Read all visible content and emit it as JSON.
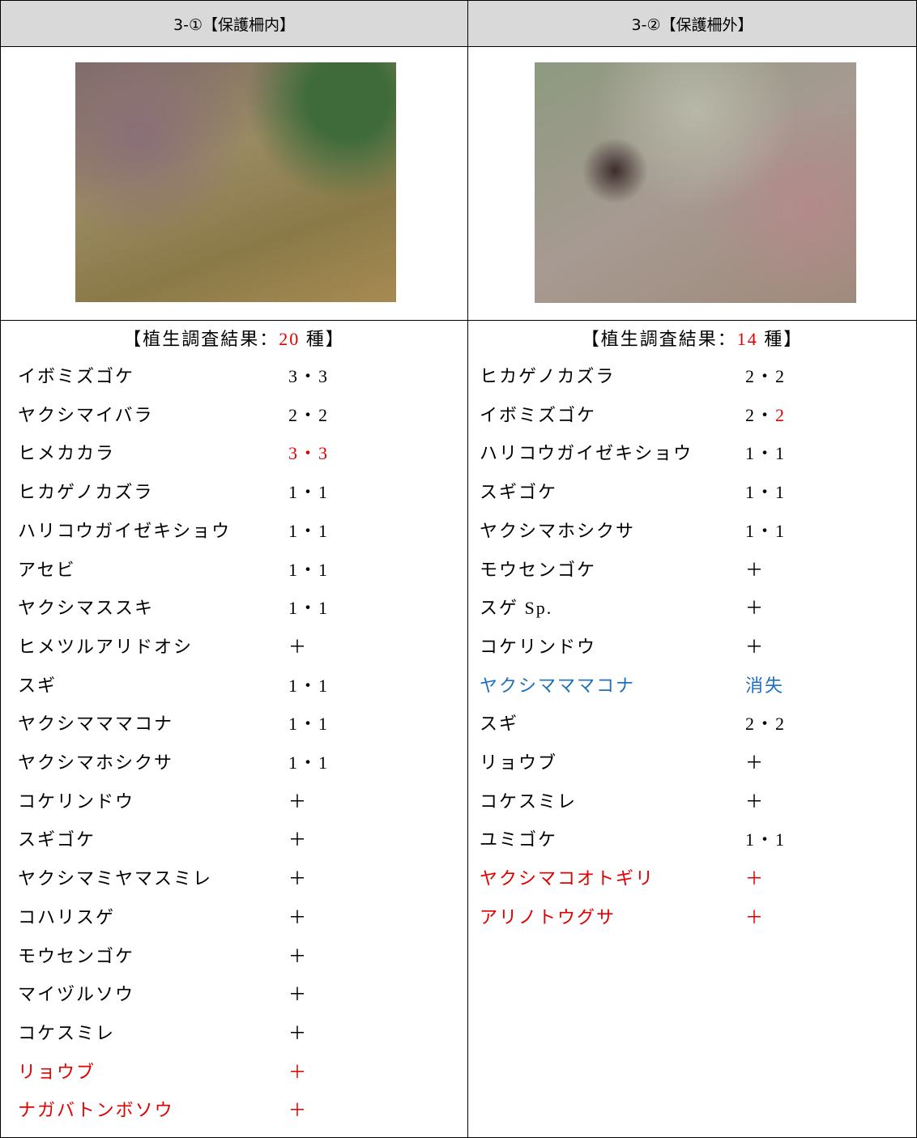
{
  "columns": [
    {
      "header": "3-①【保護柵内】",
      "result": {
        "prefix": "【植生調査結果：",
        "count": 20,
        "suffix": " 種】",
        "count_color": "#e00000"
      },
      "items": [
        {
          "name": "イボミズゴケ",
          "value": "3・3"
        },
        {
          "name": "ヤクシマイバラ",
          "value": "2・2"
        },
        {
          "name": "ヒメカカラ",
          "value": "3・3",
          "value_color": "#e00000"
        },
        {
          "name": "ヒカゲノカズラ",
          "value": "1・1"
        },
        {
          "name": "ハリコウガイゼキショウ",
          "value": "1・1"
        },
        {
          "name": "アセビ",
          "value": "1・1"
        },
        {
          "name": "ヤクシマススキ",
          "value": "1・1"
        },
        {
          "name": "ヒメツルアリドオシ",
          "value": "＋"
        },
        {
          "name": "スギ",
          "value": "1・1"
        },
        {
          "name": "ヤクシマママコナ",
          "value": "1・1"
        },
        {
          "name": "ヤクシマホシクサ",
          "value": "1・1"
        },
        {
          "name": "コケリンドウ",
          "value": "＋"
        },
        {
          "name": "スギゴケ",
          "value": "＋"
        },
        {
          "name": "ヤクシマミヤマスミレ",
          "value": "＋"
        },
        {
          "name": "コハリスゲ",
          "value": "＋"
        },
        {
          "name": "モウセンゴケ",
          "value": "＋"
        },
        {
          "name": "マイヅルソウ",
          "value": "＋"
        },
        {
          "name": "コケスミレ",
          "value": "＋"
        },
        {
          "name": "リョウブ",
          "value": "＋",
          "name_color": "#e00000",
          "value_color": "#e00000"
        },
        {
          "name": "ナガバトンボソウ",
          "value": "＋",
          "name_color": "#e00000",
          "value_color": "#e00000"
        }
      ]
    },
    {
      "header": "3-②【保護柵外】",
      "result": {
        "prefix": "【植生調査結果：",
        "count": 14,
        "suffix": " 種】",
        "count_color": "#e00000"
      },
      "items": [
        {
          "name": "ヒカゲノカズラ",
          "value": "2・2"
        },
        {
          "name": "イボミズゴケ",
          "value": [
            "2・",
            "2"
          ],
          "value_colors": [
            "#000000",
            "#e00000"
          ]
        },
        {
          "name": "ハリコウガイゼキショウ",
          "value": "1・1"
        },
        {
          "name": "スギゴケ",
          "value": "1・1"
        },
        {
          "name": "ヤクシマホシクサ",
          "value": "1・1"
        },
        {
          "name": "モウセンゴケ",
          "value": "＋"
        },
        {
          "name": "スゲ Sp.",
          "value": "＋"
        },
        {
          "name": "コケリンドウ",
          "value": "＋"
        },
        {
          "name": "ヤクシマママコナ",
          "value": "消失",
          "name_color": "#1f6fbf",
          "value_color": "#1f6fbf"
        },
        {
          "name": "スギ",
          "value": "2・2"
        },
        {
          "name": "リョウブ",
          "value": "＋"
        },
        {
          "name": "コケスミレ",
          "value": "＋"
        },
        {
          "name": "ユミゴケ",
          "value": "1・1"
        },
        {
          "name": "ヤクシマコオトギリ",
          "value": "＋",
          "name_color": "#e00000",
          "value_color": "#e00000"
        },
        {
          "name": "アリノトウグサ",
          "value": "＋",
          "name_color": "#e00000",
          "value_color": "#e00000"
        }
      ]
    }
  ]
}
